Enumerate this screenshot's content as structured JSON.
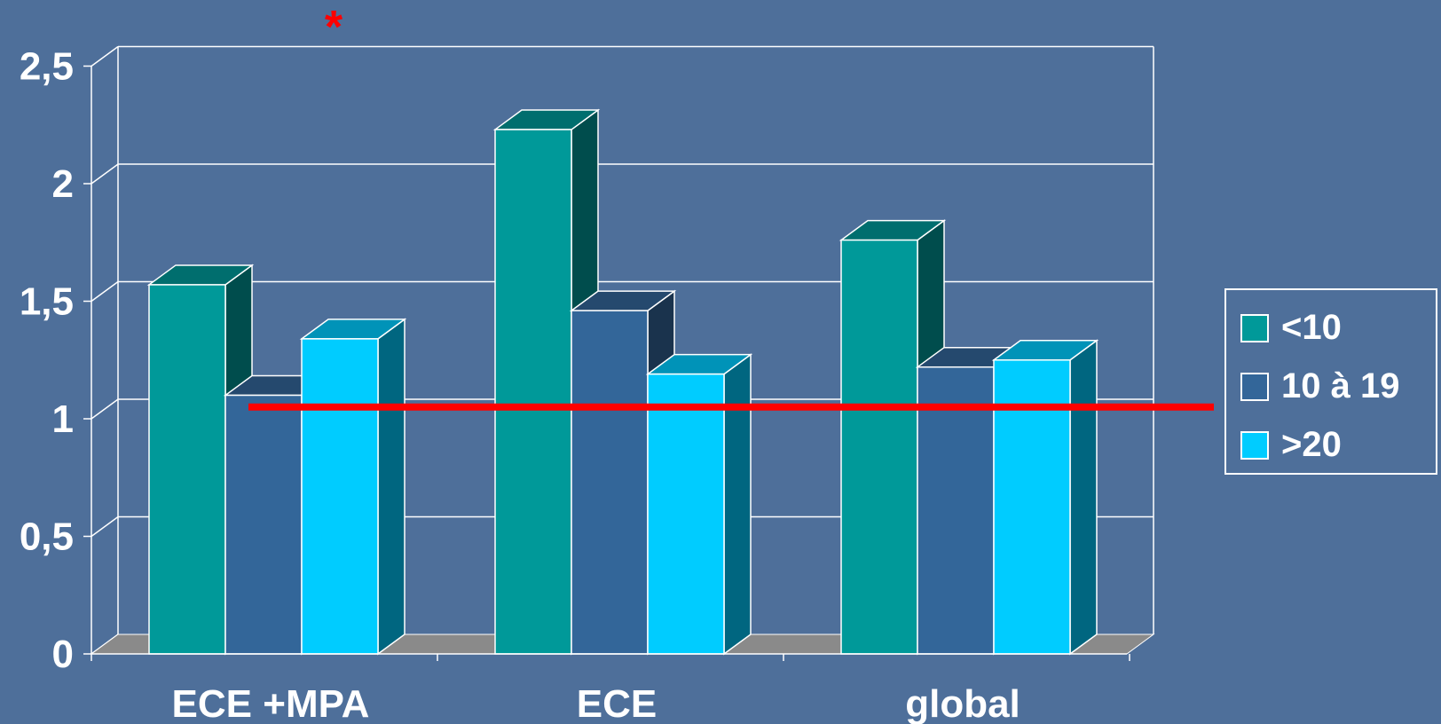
{
  "chart_data": {
    "type": "bar",
    "categories": [
      "ECE +MPA",
      "ECE",
      "global"
    ],
    "series": [
      {
        "name": "<10",
        "values": [
          1.57,
          2.23,
          1.76
        ],
        "color": "#009999"
      },
      {
        "name": "10 à 19",
        "values": [
          1.1,
          1.46,
          1.22
        ],
        "color": "#336699"
      },
      {
        "name": ">20",
        "values": [
          1.34,
          1.19,
          1.25
        ],
        "color": "#00ccff"
      }
    ],
    "yticks": [
      "0",
      "0,5",
      "1",
      "1,5",
      "2",
      "2,5"
    ],
    "ylim": [
      0,
      2.5
    ],
    "grid": true,
    "reference_line": {
      "value": 1.05,
      "color": "#ff0000"
    },
    "annotation": {
      "text": "*",
      "color": "#ff0000"
    },
    "legend": "right"
  }
}
